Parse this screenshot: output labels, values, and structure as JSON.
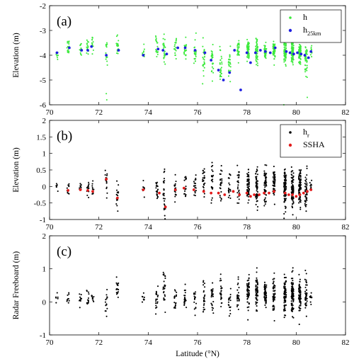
{
  "chart_data": [
    {
      "type": "scatter",
      "panel_label": "(a)",
      "ylabel": "Elevation (m)",
      "xlim": [
        70,
        82
      ],
      "ylim": [
        -6,
        -2
      ],
      "xticks": [
        70,
        72,
        74,
        76,
        78,
        80,
        82
      ],
      "yticks": [
        -6,
        -5,
        -4,
        -3,
        -2
      ],
      "legend_position": "top-right",
      "series": [
        {
          "name": "h",
          "color": "#3dea3d",
          "marker": "point",
          "clusters": [
            {
              "x": 70.3,
              "center": -3.95,
              "spread": 0.25,
              "count": 8
            },
            {
              "x": 70.75,
              "center": -3.65,
              "spread": 0.3,
              "count": 14
            },
            {
              "x": 71.25,
              "center": -3.7,
              "spread": 0.3,
              "count": 12
            },
            {
              "x": 71.55,
              "center": -3.6,
              "spread": 0.35,
              "count": 15
            },
            {
              "x": 71.75,
              "center": -3.55,
              "spread": 0.3,
              "count": 12
            },
            {
              "x": 72.3,
              "center": -3.9,
              "spread": 0.4,
              "count": 14
            },
            {
              "x": 72.75,
              "center": -3.6,
              "spread": 0.4,
              "count": 18
            },
            {
              "x": 73.8,
              "center": -3.8,
              "spread": 0.35,
              "count": 10
            },
            {
              "x": 74.35,
              "center": -3.75,
              "spread": 0.45,
              "count": 20
            },
            {
              "x": 74.65,
              "center": -3.75,
              "spread": 0.5,
              "count": 26
            },
            {
              "x": 75.1,
              "center": -3.7,
              "spread": 0.35,
              "count": 18
            },
            {
              "x": 75.5,
              "center": -3.75,
              "spread": 0.4,
              "count": 22
            },
            {
              "x": 75.9,
              "center": -3.9,
              "spread": 0.5,
              "count": 22
            },
            {
              "x": 76.25,
              "center": -4.1,
              "spread": 0.55,
              "count": 24
            },
            {
              "x": 76.6,
              "center": -4.2,
              "spread": 0.6,
              "count": 24
            },
            {
              "x": 76.95,
              "center": -4.55,
              "spread": 0.6,
              "count": 26
            },
            {
              "x": 77.3,
              "center": -4.4,
              "spread": 0.5,
              "count": 22
            },
            {
              "x": 77.65,
              "center": -3.75,
              "spread": 0.35,
              "count": 28
            },
            {
              "x": 78.05,
              "center": -3.85,
              "spread": 0.4,
              "count": 55
            },
            {
              "x": 78.4,
              "center": -3.85,
              "spread": 0.4,
              "count": 55
            },
            {
              "x": 78.75,
              "center": -3.85,
              "spread": 0.35,
              "count": 50
            },
            {
              "x": 79.1,
              "center": -3.85,
              "spread": 0.35,
              "count": 45
            },
            {
              "x": 79.55,
              "center": -3.85,
              "spread": 0.4,
              "count": 80
            },
            {
              "x": 79.85,
              "center": -3.85,
              "spread": 0.4,
              "count": 80
            },
            {
              "x": 80.15,
              "center": -3.9,
              "spread": 0.4,
              "count": 70
            },
            {
              "x": 80.4,
              "center": -4.2,
              "spread": 0.6,
              "count": 45
            },
            {
              "x": 80.6,
              "center": -3.85,
              "spread": 0.25,
              "count": 10
            }
          ],
          "outliers": [
            {
              "x": 72.3,
              "y": -5.55
            },
            {
              "x": 72.32,
              "y": -5.8
            },
            {
              "x": 79.5,
              "y": -6.0
            },
            {
              "x": 80.45,
              "y": -5.7
            }
          ]
        },
        {
          "name": "h",
          "name_subscript": "25km",
          "color": "#1f1fe0",
          "marker": "dot",
          "points": [
            [
              70.3,
              -3.9
            ],
            [
              70.8,
              -3.7
            ],
            [
              71.3,
              -3.8
            ],
            [
              71.55,
              -3.8
            ],
            [
              71.7,
              -3.65
            ],
            [
              72.3,
              -4.0
            ],
            [
              72.8,
              -3.8
            ],
            [
              73.8,
              -4.0
            ],
            [
              74.4,
              -3.75
            ],
            [
              74.6,
              -3.8
            ],
            [
              74.75,
              -3.95
            ],
            [
              75.2,
              -3.7
            ],
            [
              75.5,
              -3.7
            ],
            [
              75.9,
              -3.8
            ],
            [
              76.3,
              -3.9
            ],
            [
              76.55,
              -4.2
            ],
            [
              76.85,
              -4.6
            ],
            [
              77.05,
              -5.0
            ],
            [
              77.3,
              -4.7
            ],
            [
              77.5,
              -3.8
            ],
            [
              77.75,
              -5.4
            ],
            [
              78.0,
              -3.9
            ],
            [
              78.15,
              -4.3
            ],
            [
              78.35,
              -3.9
            ],
            [
              78.55,
              -3.8
            ],
            [
              78.75,
              -3.85
            ],
            [
              78.95,
              -3.9
            ],
            [
              79.15,
              -3.7
            ],
            [
              79.6,
              -3.85
            ],
            [
              79.75,
              -3.9
            ],
            [
              79.9,
              -3.95
            ],
            [
              80.05,
              -3.9
            ],
            [
              80.2,
              -3.95
            ],
            [
              80.35,
              -4.0
            ],
            [
              80.5,
              -4.1
            ],
            [
              80.6,
              -3.85
            ]
          ]
        }
      ]
    },
    {
      "type": "scatter",
      "panel_label": "(b)",
      "ylabel": "Elevation (m)",
      "xlim": [
        70,
        82
      ],
      "ylim": [
        -1,
        2
      ],
      "xticks": [
        70,
        72,
        74,
        76,
        78,
        80,
        82
      ],
      "yticks": [
        -1,
        -0.5,
        0,
        0.5,
        1,
        1.5,
        2
      ],
      "legend_position": "top-right",
      "series": [
        {
          "name": "h",
          "name_subscript": "r",
          "color": "#000000",
          "marker": "point",
          "clusters": [
            {
              "x": 70.3,
              "center": 0.0,
              "spread": 0.15,
              "count": 6
            },
            {
              "x": 70.75,
              "center": -0.05,
              "spread": 0.25,
              "count": 10
            },
            {
              "x": 71.25,
              "center": 0.0,
              "spread": 0.2,
              "count": 10
            },
            {
              "x": 71.55,
              "center": -0.05,
              "spread": 0.3,
              "count": 14
            },
            {
              "x": 71.75,
              "center": -0.05,
              "spread": 0.25,
              "count": 10
            },
            {
              "x": 72.3,
              "center": 0.2,
              "spread": 0.35,
              "count": 14
            },
            {
              "x": 72.75,
              "center": -0.3,
              "spread": 0.45,
              "count": 18
            },
            {
              "x": 73.8,
              "center": -0.05,
              "spread": 0.25,
              "count": 8
            },
            {
              "x": 74.35,
              "center": -0.1,
              "spread": 0.4,
              "count": 20
            },
            {
              "x": 74.65,
              "center": -0.2,
              "spread": 0.55,
              "count": 26
            },
            {
              "x": 75.1,
              "center": -0.05,
              "spread": 0.4,
              "count": 18
            },
            {
              "x": 75.5,
              "center": 0.0,
              "spread": 0.4,
              "count": 20
            },
            {
              "x": 75.9,
              "center": -0.05,
              "spread": 0.4,
              "count": 18
            },
            {
              "x": 76.25,
              "center": 0.05,
              "spread": 0.5,
              "count": 24
            },
            {
              "x": 76.6,
              "center": 0.05,
              "spread": 0.55,
              "count": 24
            },
            {
              "x": 76.95,
              "center": 0.1,
              "spread": 0.6,
              "count": 24
            },
            {
              "x": 77.3,
              "center": 0.0,
              "spread": 0.55,
              "count": 20
            },
            {
              "x": 77.65,
              "center": 0.05,
              "spread": 0.5,
              "count": 26
            },
            {
              "x": 78.05,
              "center": -0.05,
              "spread": 0.45,
              "count": 60
            },
            {
              "x": 78.4,
              "center": 0.0,
              "spread": 0.5,
              "count": 60
            },
            {
              "x": 78.75,
              "center": 0.05,
              "spread": 0.5,
              "count": 55
            },
            {
              "x": 79.1,
              "center": 0.05,
              "spread": 0.45,
              "count": 50
            },
            {
              "x": 79.55,
              "center": -0.05,
              "spread": 0.5,
              "count": 90
            },
            {
              "x": 79.85,
              "center": -0.05,
              "spread": 0.5,
              "count": 90
            },
            {
              "x": 80.15,
              "center": -0.05,
              "spread": 0.5,
              "count": 80
            },
            {
              "x": 80.4,
              "center": -0.1,
              "spread": 0.5,
              "count": 45
            },
            {
              "x": 80.6,
              "center": 0.0,
              "spread": 0.2,
              "count": 10
            }
          ],
          "outliers": []
        },
        {
          "name": "SSHA",
          "color": "#e21c1c",
          "marker": "dot",
          "points": [
            [
              70.75,
              -0.12
            ],
            [
              71.25,
              -0.1
            ],
            [
              71.55,
              -0.12
            ],
            [
              71.75,
              -0.15
            ],
            [
              72.3,
              0.22
            ],
            [
              72.75,
              -0.35
            ],
            [
              73.8,
              -0.1
            ],
            [
              74.45,
              -0.2
            ],
            [
              74.7,
              -0.62
            ],
            [
              75.1,
              -0.1
            ],
            [
              75.45,
              -0.05
            ],
            [
              75.85,
              -0.1
            ],
            [
              76.25,
              -0.15
            ],
            [
              76.55,
              -0.2
            ],
            [
              76.85,
              -0.2
            ],
            [
              77.1,
              -0.25
            ],
            [
              77.45,
              -0.15
            ],
            [
              77.7,
              -0.25
            ],
            [
              78.0,
              -0.2
            ],
            [
              78.15,
              -0.3
            ],
            [
              78.3,
              -0.25
            ],
            [
              78.5,
              -0.25
            ],
            [
              78.7,
              -0.2
            ],
            [
              78.9,
              -0.2
            ],
            [
              79.1,
              -0.15
            ],
            [
              79.55,
              -0.2
            ],
            [
              79.7,
              -0.25
            ],
            [
              79.85,
              -0.25
            ],
            [
              80.0,
              -0.3
            ],
            [
              80.15,
              -0.25
            ],
            [
              80.3,
              -0.2
            ],
            [
              80.45,
              -0.15
            ],
            [
              80.6,
              -0.1
            ]
          ]
        }
      ]
    },
    {
      "type": "scatter",
      "panel_label": "(c)",
      "ylabel": "Radar Freeboard (m)",
      "xlabel": "Latitude (°N)",
      "xlim": [
        70,
        82
      ],
      "ylim": [
        -1,
        2
      ],
      "xticks": [
        70,
        72,
        74,
        76,
        78,
        80,
        82
      ],
      "yticks": [
        -1,
        0,
        1,
        2
      ],
      "series": [
        {
          "color": "#000000",
          "marker": "point",
          "clusters": [
            {
              "x": 70.3,
              "center": 0.05,
              "spread": 0.15,
              "count": 6
            },
            {
              "x": 70.75,
              "center": 0.05,
              "spread": 0.25,
              "count": 10
            },
            {
              "x": 71.25,
              "center": 0.1,
              "spread": 0.2,
              "count": 10
            },
            {
              "x": 71.55,
              "center": 0.05,
              "spread": 0.3,
              "count": 14
            },
            {
              "x": 71.75,
              "center": 0.05,
              "spread": 0.25,
              "count": 10
            },
            {
              "x": 72.3,
              "center": -0.05,
              "spread": 0.35,
              "count": 14
            },
            {
              "x": 72.75,
              "center": 0.35,
              "spread": 0.4,
              "count": 18
            },
            {
              "x": 73.8,
              "center": 0.05,
              "spread": 0.25,
              "count": 8
            },
            {
              "x": 74.35,
              "center": 0.1,
              "spread": 0.35,
              "count": 20
            },
            {
              "x": 74.65,
              "center": 0.45,
              "spread": 0.6,
              "count": 26
            },
            {
              "x": 75.1,
              "center": 0.05,
              "spread": 0.35,
              "count": 18
            },
            {
              "x": 75.5,
              "center": 0.05,
              "spread": 0.35,
              "count": 20
            },
            {
              "x": 75.9,
              "center": 0.05,
              "spread": 0.4,
              "count": 18
            },
            {
              "x": 76.25,
              "center": 0.1,
              "spread": 0.5,
              "count": 24
            },
            {
              "x": 76.6,
              "center": 0.15,
              "spread": 0.5,
              "count": 24
            },
            {
              "x": 76.95,
              "center": 0.2,
              "spread": 0.55,
              "count": 24
            },
            {
              "x": 77.3,
              "center": 0.05,
              "spread": 0.5,
              "count": 20
            },
            {
              "x": 77.65,
              "center": 0.15,
              "spread": 0.45,
              "count": 26
            },
            {
              "x": 78.05,
              "center": 0.2,
              "spread": 0.45,
              "count": 60
            },
            {
              "x": 78.4,
              "center": 0.25,
              "spread": 0.45,
              "count": 60
            },
            {
              "x": 78.75,
              "center": 0.25,
              "spread": 0.45,
              "count": 55
            },
            {
              "x": 79.1,
              "center": 0.25,
              "spread": 0.45,
              "count": 50
            },
            {
              "x": 79.55,
              "center": 0.25,
              "spread": 0.5,
              "count": 90
            },
            {
              "x": 79.85,
              "center": 0.25,
              "spread": 0.5,
              "count": 90
            },
            {
              "x": 80.15,
              "center": 0.25,
              "spread": 0.5,
              "count": 80
            },
            {
              "x": 80.4,
              "center": 0.2,
              "spread": 0.5,
              "count": 45
            },
            {
              "x": 80.6,
              "center": 0.15,
              "spread": 0.2,
              "count": 10
            }
          ],
          "outliers": []
        }
      ]
    }
  ]
}
